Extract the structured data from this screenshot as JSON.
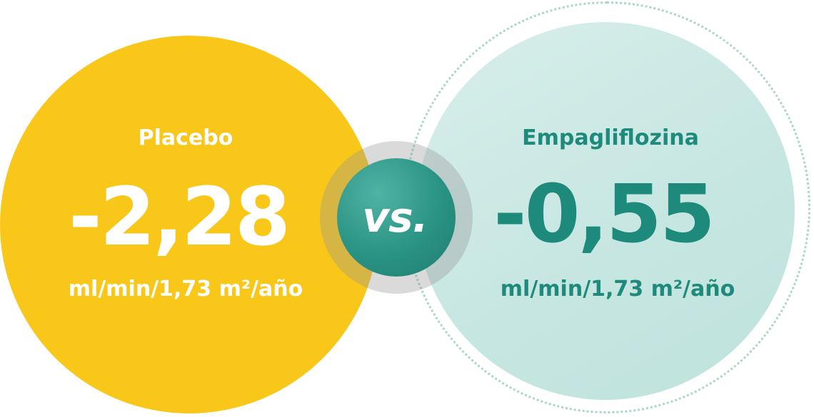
{
  "colors": {
    "placebo": "#f8c71a",
    "empagliflozina_text": "#1d8a7c",
    "empagliflozina_fill": "#c6e6e1",
    "vs_badge": "#2a9383"
  },
  "placebo": {
    "title": "Placebo",
    "value": "-2,28",
    "unit": "ml/min/1,73 m²/año"
  },
  "vs": {
    "label": "vs."
  },
  "empagliflozina": {
    "title": "Empagliflozina",
    "value": "-0,55",
    "unit": "ml/min/1,73 m²/año"
  }
}
